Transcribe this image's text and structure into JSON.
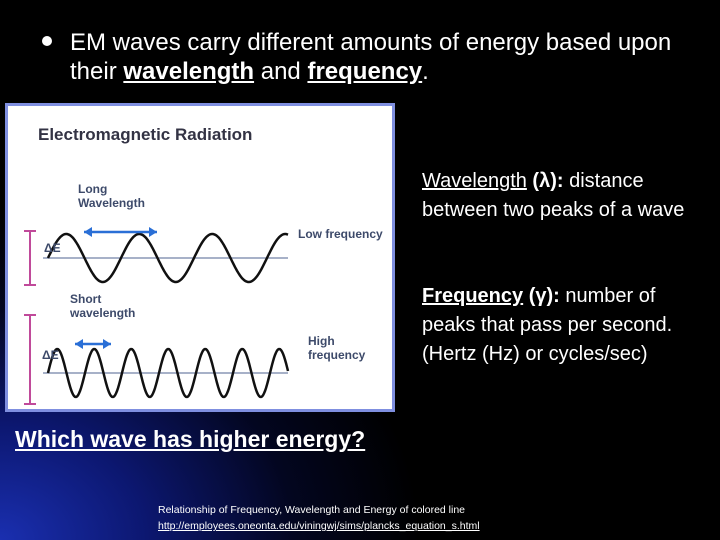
{
  "bullet": {
    "parts": [
      "EM waves carry different amounts of energy based upon their ",
      "wavelength",
      " and ",
      "frequency",
      "."
    ]
  },
  "diagram": {
    "title": "Electromagnetic Radiation",
    "long_wavelength": "Long Wavelength",
    "low_frequency": "Low frequency",
    "delta_e_top": "ΔE",
    "short_wavelength": "Short wavelength",
    "high_frequency": "High frequency",
    "delta_e_bottom": "ΔE"
  },
  "definitions": [
    {
      "term": "Wavelength",
      "symbol": " (λ):",
      "text": " distance between two peaks of a wave"
    },
    {
      "term": "Frequency",
      "symbol": " (γ):",
      "text": " number of peaks that pass per second. (Hertz (Hz) or cycles/sec)"
    }
  ],
  "question": "Which wave has higher energy?",
  "credit": {
    "caption": "Relationship of Frequency, Wavelength and Energy of colored line",
    "url": "http://employees.oneonta.edu/viningwj/sims/plancks_equation_s.html"
  }
}
